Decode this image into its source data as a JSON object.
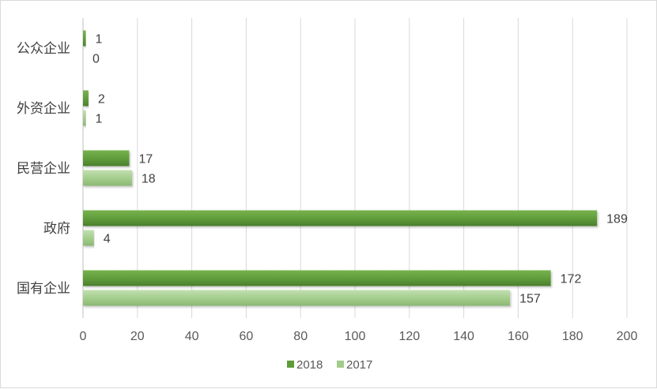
{
  "chart_data": {
    "type": "bar",
    "orientation": "horizontal",
    "title": "",
    "xlabel": "",
    "ylabel": "",
    "categories": [
      "公众企业",
      "外资企业",
      "民营企业",
      "政府",
      "国有企业"
    ],
    "series": [
      {
        "name": "2018",
        "values": [
          1,
          2,
          17,
          189,
          172
        ],
        "color": "#5f9b3a"
      },
      {
        "name": "2017",
        "values": [
          0,
          1,
          18,
          4,
          157
        ],
        "color": "#a3cc8b"
      }
    ],
    "xlim": [
      0,
      200
    ],
    "xticks": [
      "0",
      "20",
      "40",
      "60",
      "80",
      "100",
      "120",
      "140",
      "160",
      "180",
      "200"
    ],
    "grid": true,
    "legend_position": "bottom"
  },
  "colors": {
    "grid": "#d9d9d9",
    "axis": "#bfbfbf"
  }
}
